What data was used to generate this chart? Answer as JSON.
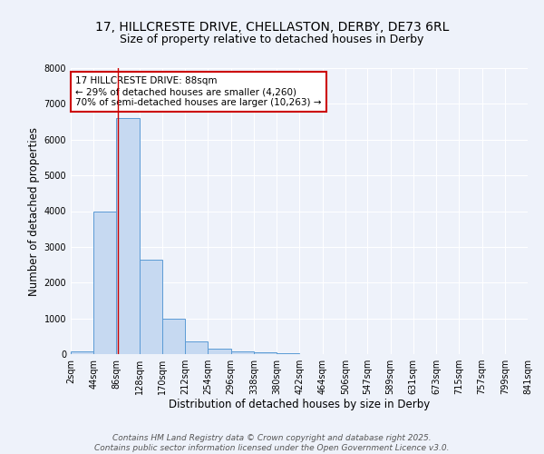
{
  "title_line1": "17, HILLCRESTE DRIVE, CHELLASTON, DERBY, DE73 6RL",
  "title_line2": "Size of property relative to detached houses in Derby",
  "xlabel": "Distribution of detached houses by size in Derby",
  "ylabel": "Number of detached properties",
  "bar_values": [
    75,
    4000,
    6600,
    2650,
    1000,
    350,
    150,
    75,
    50,
    30,
    0,
    0,
    0,
    0,
    0,
    0,
    0,
    0,
    0,
    0
  ],
  "bin_edges": [
    2,
    44,
    86,
    128,
    170,
    212,
    254,
    296,
    338,
    380,
    422,
    464,
    506,
    547,
    589,
    631,
    673,
    715,
    757,
    799,
    841
  ],
  "bar_color": "#c6d9f1",
  "bar_edge_color": "#5b9bd5",
  "property_line_x": 88,
  "property_line_color": "#cc0000",
  "annotation_line1": "17 HILLCRESTE DRIVE: 88sqm",
  "annotation_line2": "← 29% of detached houses are smaller (4,260)",
  "annotation_line3": "70% of semi-detached houses are larger (10,263) →",
  "annotation_box_color": "#cc0000",
  "ylim": [
    0,
    8000
  ],
  "yticks": [
    0,
    1000,
    2000,
    3000,
    4000,
    5000,
    6000,
    7000,
    8000
  ],
  "background_color": "#eef2fa",
  "plot_background": "#eef2fa",
  "footer_line1": "Contains HM Land Registry data © Crown copyright and database right 2025.",
  "footer_line2": "Contains public sector information licensed under the Open Government Licence v3.0.",
  "title_fontsize": 10,
  "subtitle_fontsize": 9,
  "axis_label_fontsize": 8.5,
  "tick_fontsize": 7,
  "annotation_fontsize": 7.5,
  "footer_fontsize": 6.5
}
